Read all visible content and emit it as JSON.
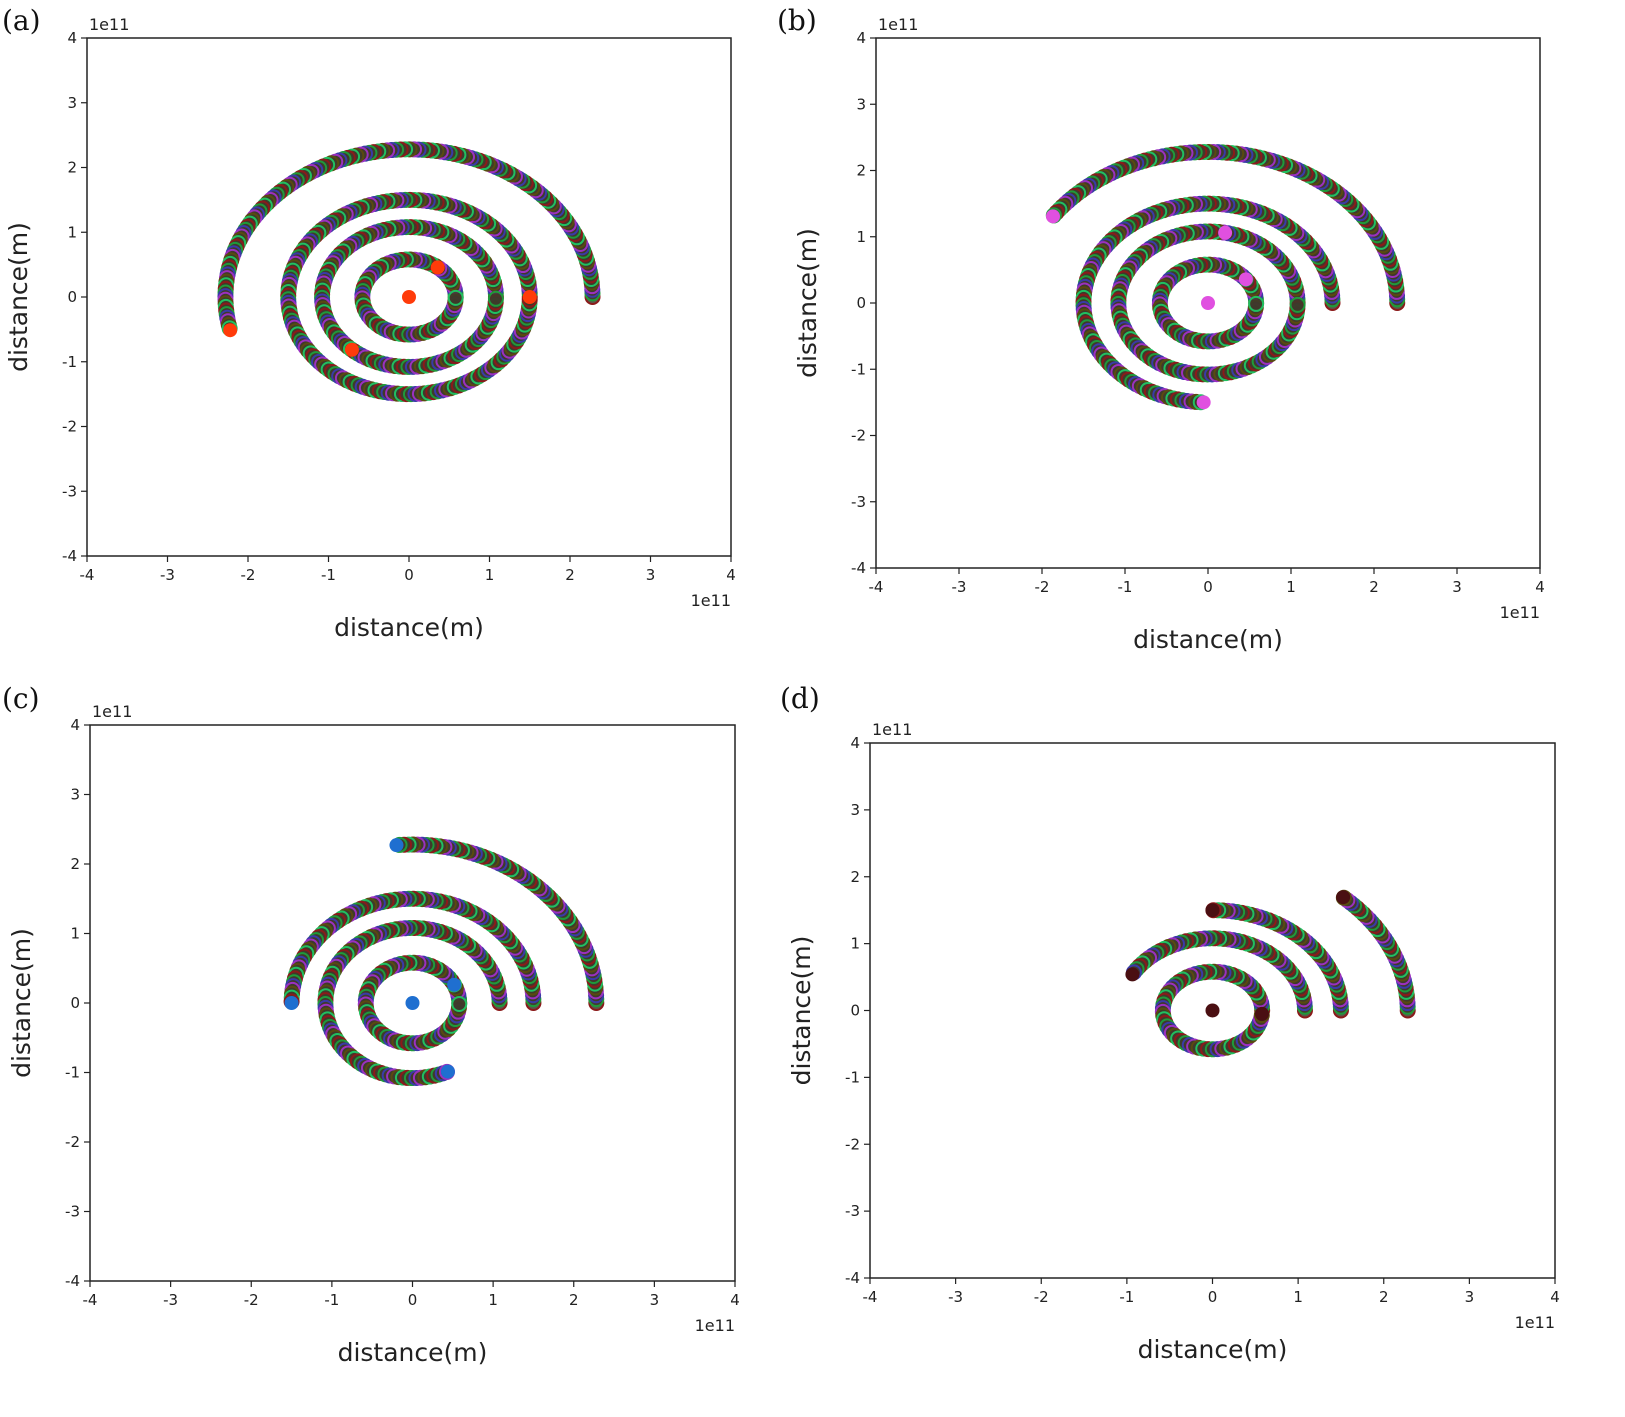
{
  "chart_data": [
    {
      "type": "scatter",
      "panel_label": "(a)",
      "xlabel": "distance(m)",
      "ylabel": "distance(m)",
      "x_offset_label": "1e11",
      "y_offset_label": "1e11",
      "xlim": [
        -4,
        4
      ],
      "ylim": [
        -4,
        4
      ],
      "ticks": [
        "-4",
        "-3",
        "-2",
        "-1",
        "0",
        "1",
        "2",
        "3",
        "4"
      ],
      "planet_color": "#ff3b0a",
      "bodies": [
        {
          "name": "star",
          "radius": 0,
          "angle_deg": 0,
          "trail_deg": 0
        },
        {
          "name": "orbit-1",
          "radius": 0.58,
          "angle_deg": 52,
          "trail_deg": 360
        },
        {
          "name": "orbit-2",
          "radius": 1.08,
          "angle_deg": 229,
          "trail_deg": 360
        },
        {
          "name": "orbit-3",
          "radius": 1.5,
          "angle_deg": 0,
          "trail_deg": 360
        },
        {
          "name": "orbit-4",
          "radius": 2.28,
          "angle_deg": 193,
          "trail_deg": 193
        }
      ]
    },
    {
      "type": "scatter",
      "panel_label": "(b)",
      "xlabel": "distance(m)",
      "ylabel": "distance(m)",
      "x_offset_label": "1e11",
      "y_offset_label": "1e11",
      "xlim": [
        -4,
        4
      ],
      "ylim": [
        -4,
        4
      ],
      "ticks": [
        "-4",
        "-3",
        "-2",
        "-1",
        "0",
        "1",
        "2",
        "3",
        "4"
      ],
      "planet_color": "#e050e0",
      "bodies": [
        {
          "name": "star",
          "radius": 0,
          "angle_deg": 0,
          "trail_deg": 0
        },
        {
          "name": "orbit-1",
          "radius": 0.58,
          "angle_deg": 38,
          "trail_deg": 360
        },
        {
          "name": "orbit-2",
          "radius": 1.08,
          "angle_deg": 79,
          "trail_deg": 360
        },
        {
          "name": "orbit-3",
          "radius": 1.5,
          "angle_deg": 268,
          "trail_deg": 268
        },
        {
          "name": "orbit-4",
          "radius": 2.28,
          "angle_deg": 145,
          "trail_deg": 145
        }
      ]
    },
    {
      "type": "scatter",
      "panel_label": "(c)",
      "xlabel": "distance(m)",
      "ylabel": "distance(m)",
      "x_offset_label": "1e11",
      "y_offset_label": "1e11",
      "xlim": [
        -4,
        4
      ],
      "ylim": [
        -4,
        4
      ],
      "ticks": [
        "-4",
        "-3",
        "-2",
        "-1",
        "0",
        "1",
        "2",
        "3",
        "4"
      ],
      "planet_color": "#1f6fd0",
      "bodies": [
        {
          "name": "star",
          "radius": 0,
          "angle_deg": 0,
          "trail_deg": 0
        },
        {
          "name": "orbit-1",
          "radius": 0.58,
          "angle_deg": 27,
          "trail_deg": 360
        },
        {
          "name": "orbit-2",
          "radius": 1.08,
          "angle_deg": 294,
          "trail_deg": 294
        },
        {
          "name": "orbit-3",
          "radius": 1.5,
          "angle_deg": 180,
          "trail_deg": 180
        },
        {
          "name": "orbit-4",
          "radius": 2.28,
          "angle_deg": 95,
          "trail_deg": 95
        }
      ]
    },
    {
      "type": "scatter",
      "panel_label": "(d)",
      "xlabel": "distance(m)",
      "ylabel": "distance(m)",
      "x_offset_label": "1e11",
      "y_offset_label": "1e11",
      "xlim": [
        -4,
        4
      ],
      "ylim": [
        -4,
        4
      ],
      "ticks": [
        "-4",
        "-3",
        "-2",
        "-1",
        "0",
        "1",
        "2",
        "3",
        "4"
      ],
      "planet_color": "#4a0f12",
      "bodies": [
        {
          "name": "star",
          "radius": 0,
          "angle_deg": 0,
          "trail_deg": 0
        },
        {
          "name": "orbit-1",
          "radius": 0.58,
          "angle_deg": 355,
          "trail_deg": 355
        },
        {
          "name": "orbit-2",
          "radius": 1.08,
          "angle_deg": 150,
          "trail_deg": 150
        },
        {
          "name": "orbit-3",
          "radius": 1.5,
          "angle_deg": 90,
          "trail_deg": 90
        },
        {
          "name": "orbit-4",
          "radius": 2.28,
          "angle_deg": 48,
          "trail_deg": 48
        }
      ]
    }
  ]
}
